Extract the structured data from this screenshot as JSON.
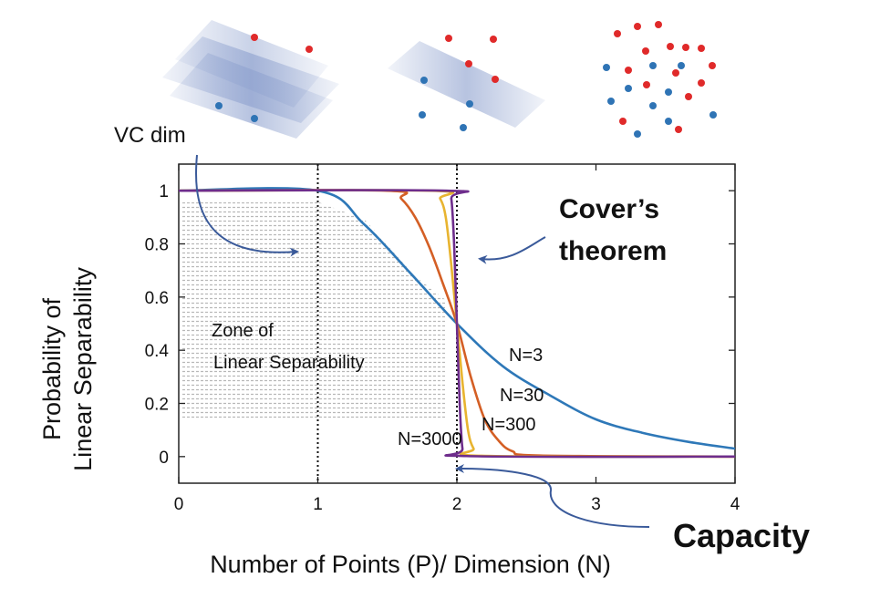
{
  "chart_data": {
    "type": "line",
    "title": "",
    "xlabel": "Number of Points (P)/ Dimension (N)",
    "ylabel_lines": [
      "Probability of",
      "Linear Separability"
    ],
    "xlim": [
      0,
      4
    ],
    "ylim": [
      -0.1,
      1.1
    ],
    "xticks": [
      "0",
      "1",
      "2",
      "3",
      "4"
    ],
    "yticks": [
      "0",
      "0.2",
      "0.4",
      "0.6",
      "0.8",
      "1"
    ],
    "grid": false,
    "vertical_lines": [
      1,
      2
    ],
    "series": [
      {
        "name": "N=3",
        "color": "#2e78b8",
        "x": [
          0,
          1,
          1.33,
          1.67,
          2,
          2.33,
          2.67,
          3,
          3.33,
          3.67,
          4
        ],
        "y": [
          1,
          1,
          0.875,
          0.6875,
          0.5,
          0.34,
          0.23,
          0.14,
          0.09,
          0.055,
          0.03
        ]
      },
      {
        "name": "N=30",
        "color": "#d45f25",
        "x": [
          0,
          1.5,
          1.6,
          1.7,
          1.8,
          1.9,
          2.0,
          2.1,
          2.2,
          2.3,
          2.4,
          2.6,
          4
        ],
        "y": [
          1,
          1,
          0.97,
          0.9,
          0.79,
          0.65,
          0.5,
          0.3,
          0.14,
          0.06,
          0.02,
          0.004,
          0
        ]
      },
      {
        "name": "N=300",
        "color": "#e8b430",
        "x": [
          0,
          1.82,
          1.88,
          1.92,
          1.96,
          2.0,
          2.04,
          2.08,
          2.12,
          2.18,
          4
        ],
        "y": [
          1,
          1,
          0.97,
          0.9,
          0.72,
          0.5,
          0.28,
          0.1,
          0.03,
          0.003,
          0
        ]
      },
      {
        "name": "N=3000",
        "color": "#6e2d8c",
        "x": [
          0,
          1.93,
          1.96,
          1.98,
          2.0,
          2.02,
          2.04,
          2.07,
          4
        ],
        "y": [
          1,
          1,
          0.97,
          0.8,
          0.5,
          0.2,
          0.03,
          0.002,
          0
        ]
      }
    ],
    "annotations": {
      "vc_dim": "VC dim",
      "covers_line1": "Cover’s",
      "covers_line2": "theorem",
      "zone_line1": "Zone of",
      "zone_line2": "Linear Separability",
      "capacity": "Capacity"
    },
    "colors": {
      "arrow": "#3a5a9a",
      "plane": "#8fa2cf",
      "red_point": "#e02a2a",
      "blue_point": "#2f74b5",
      "hatch": "#b8b8b8"
    }
  }
}
